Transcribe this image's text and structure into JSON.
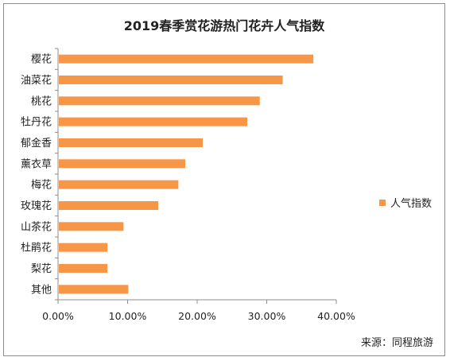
{
  "chart_data": {
    "type": "bar",
    "orientation": "horizontal",
    "title": "2019春季赏花游热门花卉人气指数",
    "categories": [
      "樱花",
      "油菜花",
      "桃花",
      "牡丹花",
      "郁金香",
      "薰衣草",
      "梅花",
      "玫瑰花",
      "山茶花",
      "杜鹃花",
      "梨花",
      "其他"
    ],
    "series": [
      {
        "name": "人气指数",
        "values": [
          0.367,
          0.323,
          0.29,
          0.272,
          0.208,
          0.183,
          0.173,
          0.144,
          0.094,
          0.071,
          0.071,
          0.101
        ],
        "color": "#F79646"
      }
    ],
    "xlim": [
      0,
      0.4
    ],
    "xticks": [
      "0.00%",
      "10.00%",
      "20.00%",
      "30.00%",
      "40.00%"
    ],
    "grid": false,
    "legend_position": "right"
  },
  "source_text": "来源：同程旅游"
}
